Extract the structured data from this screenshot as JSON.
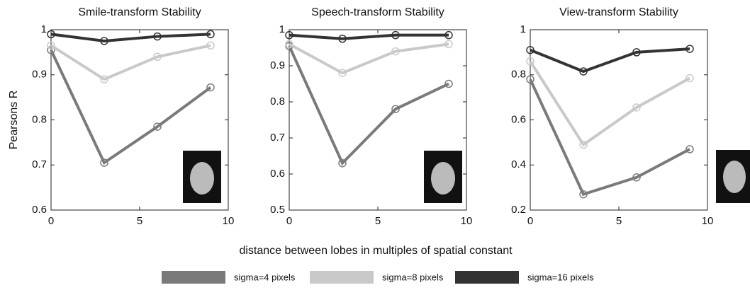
{
  "x_label": "distance between lobes in multiples of spatial constant",
  "legend": [
    {
      "name": "sigma=4 pixels",
      "color": "#7a7a7a"
    },
    {
      "name": "sigma=8 pixels",
      "color": "#c9c9c9"
    },
    {
      "name": "sigma=16 pixels",
      "color": "#333333"
    }
  ],
  "chart_data": [
    {
      "type": "line",
      "title": "Smile-transform Stability",
      "y_label": "Pearsons R",
      "x": [
        0,
        3,
        6,
        9
      ],
      "xlim": [
        0,
        10
      ],
      "xticks": [
        0,
        5,
        10
      ],
      "ylim": [
        0.6,
        1
      ],
      "yticks": [
        0.6,
        0.7,
        0.8,
        0.9,
        1
      ],
      "series": [
        {
          "values": [
            0.955,
            0.705,
            0.785,
            0.872
          ]
        },
        {
          "values": [
            0.965,
            0.89,
            0.94,
            0.965
          ]
        },
        {
          "values": [
            0.99,
            0.975,
            0.985,
            0.99
          ]
        }
      ]
    },
    {
      "type": "line",
      "title": "Speech-transform Stability",
      "x": [
        0,
        3,
        6,
        9
      ],
      "xlim": [
        0,
        10
      ],
      "xticks": [
        0,
        5,
        10
      ],
      "ylim": [
        0.5,
        1
      ],
      "yticks": [
        0.5,
        0.6,
        0.7,
        0.8,
        0.9,
        1
      ],
      "series": [
        {
          "values": [
            0.955,
            0.63,
            0.78,
            0.85
          ]
        },
        {
          "values": [
            0.96,
            0.88,
            0.94,
            0.96
          ]
        },
        {
          "values": [
            0.985,
            0.975,
            0.985,
            0.985
          ]
        }
      ]
    },
    {
      "type": "line",
      "title": "View-transform Stability",
      "x": [
        0,
        3,
        6,
        9
      ],
      "xlim": [
        0,
        10
      ],
      "xticks": [
        0,
        5,
        10
      ],
      "ylim": [
        0.2,
        1
      ],
      "yticks": [
        0.2,
        0.4,
        0.6,
        0.8,
        1
      ],
      "series": [
        {
          "values": [
            0.78,
            0.27,
            0.345,
            0.47
          ]
        },
        {
          "values": [
            0.86,
            0.49,
            0.655,
            0.785
          ]
        },
        {
          "values": [
            0.91,
            0.815,
            0.9,
            0.915
          ]
        }
      ]
    }
  ]
}
